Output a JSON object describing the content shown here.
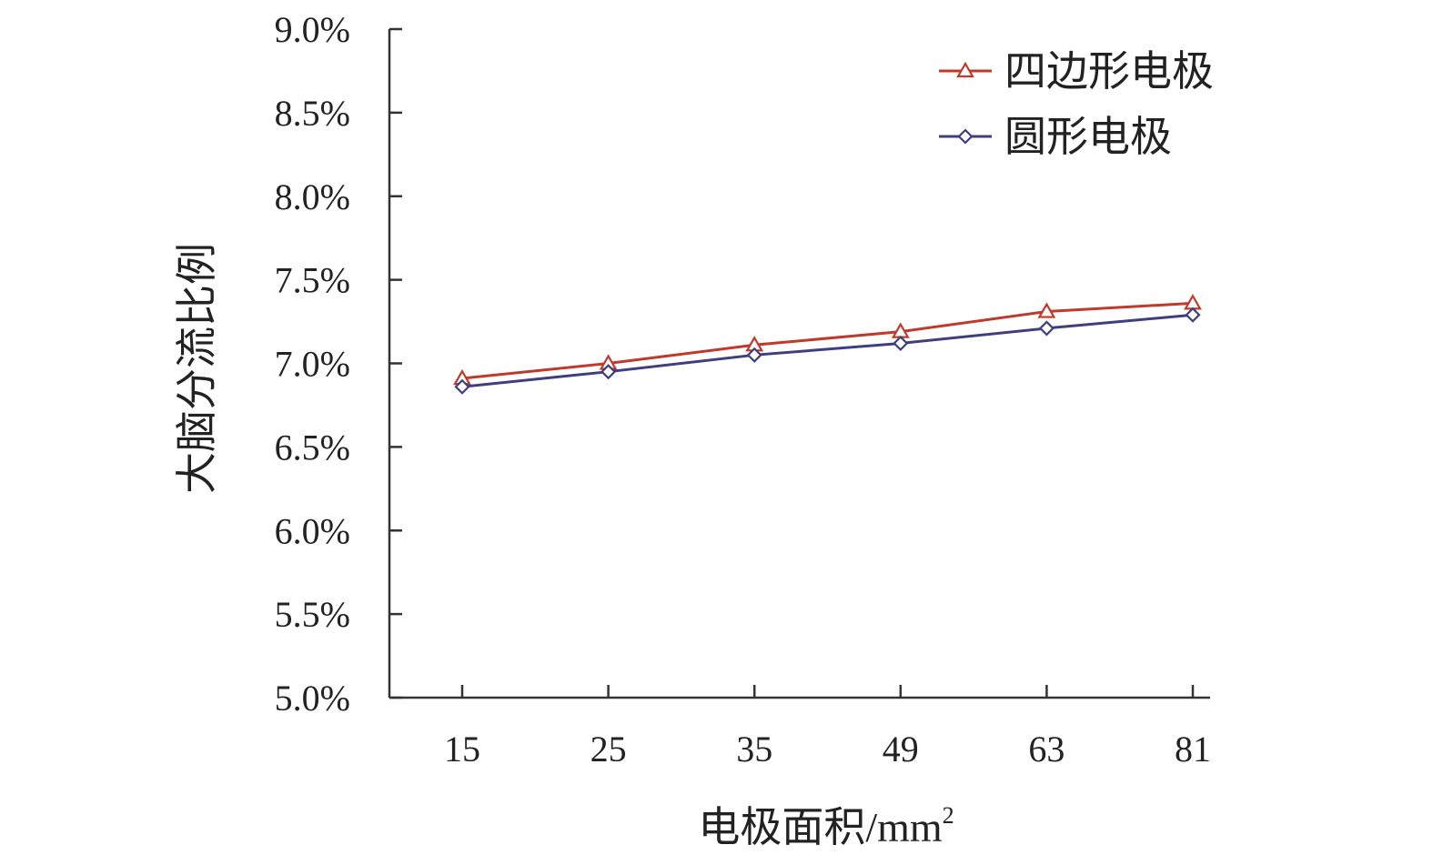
{
  "chart_data": {
    "type": "line",
    "categories": [
      "15",
      "25",
      "35",
      "49",
      "63",
      "81"
    ],
    "ylabel": "大脑分流比例",
    "xlabel_main": "电极面积/mm",
    "xlabel_sup": "2",
    "ylim": [
      5.0,
      9.0
    ],
    "yticks": [
      5.0,
      5.5,
      6.0,
      6.5,
      7.0,
      7.5,
      8.0,
      8.5,
      9.0
    ],
    "ytick_labels": [
      "5.0%",
      "5.5%",
      "6.0%",
      "6.5%",
      "7.0%",
      "7.5%",
      "8.0%",
      "8.5%",
      "9.0%"
    ],
    "grid": false,
    "legend_position": "top-right",
    "series": [
      {
        "name": "四边形电极",
        "values": [
          6.91,
          7.0,
          7.11,
          7.19,
          7.31,
          7.36
        ],
        "color": "#c0392b",
        "marker": "triangle"
      },
      {
        "name": "圆形电极",
        "values": [
          6.86,
          6.95,
          7.05,
          7.12,
          7.21,
          7.29
        ],
        "color": "#3f3f7f",
        "marker": "diamond"
      }
    ]
  }
}
